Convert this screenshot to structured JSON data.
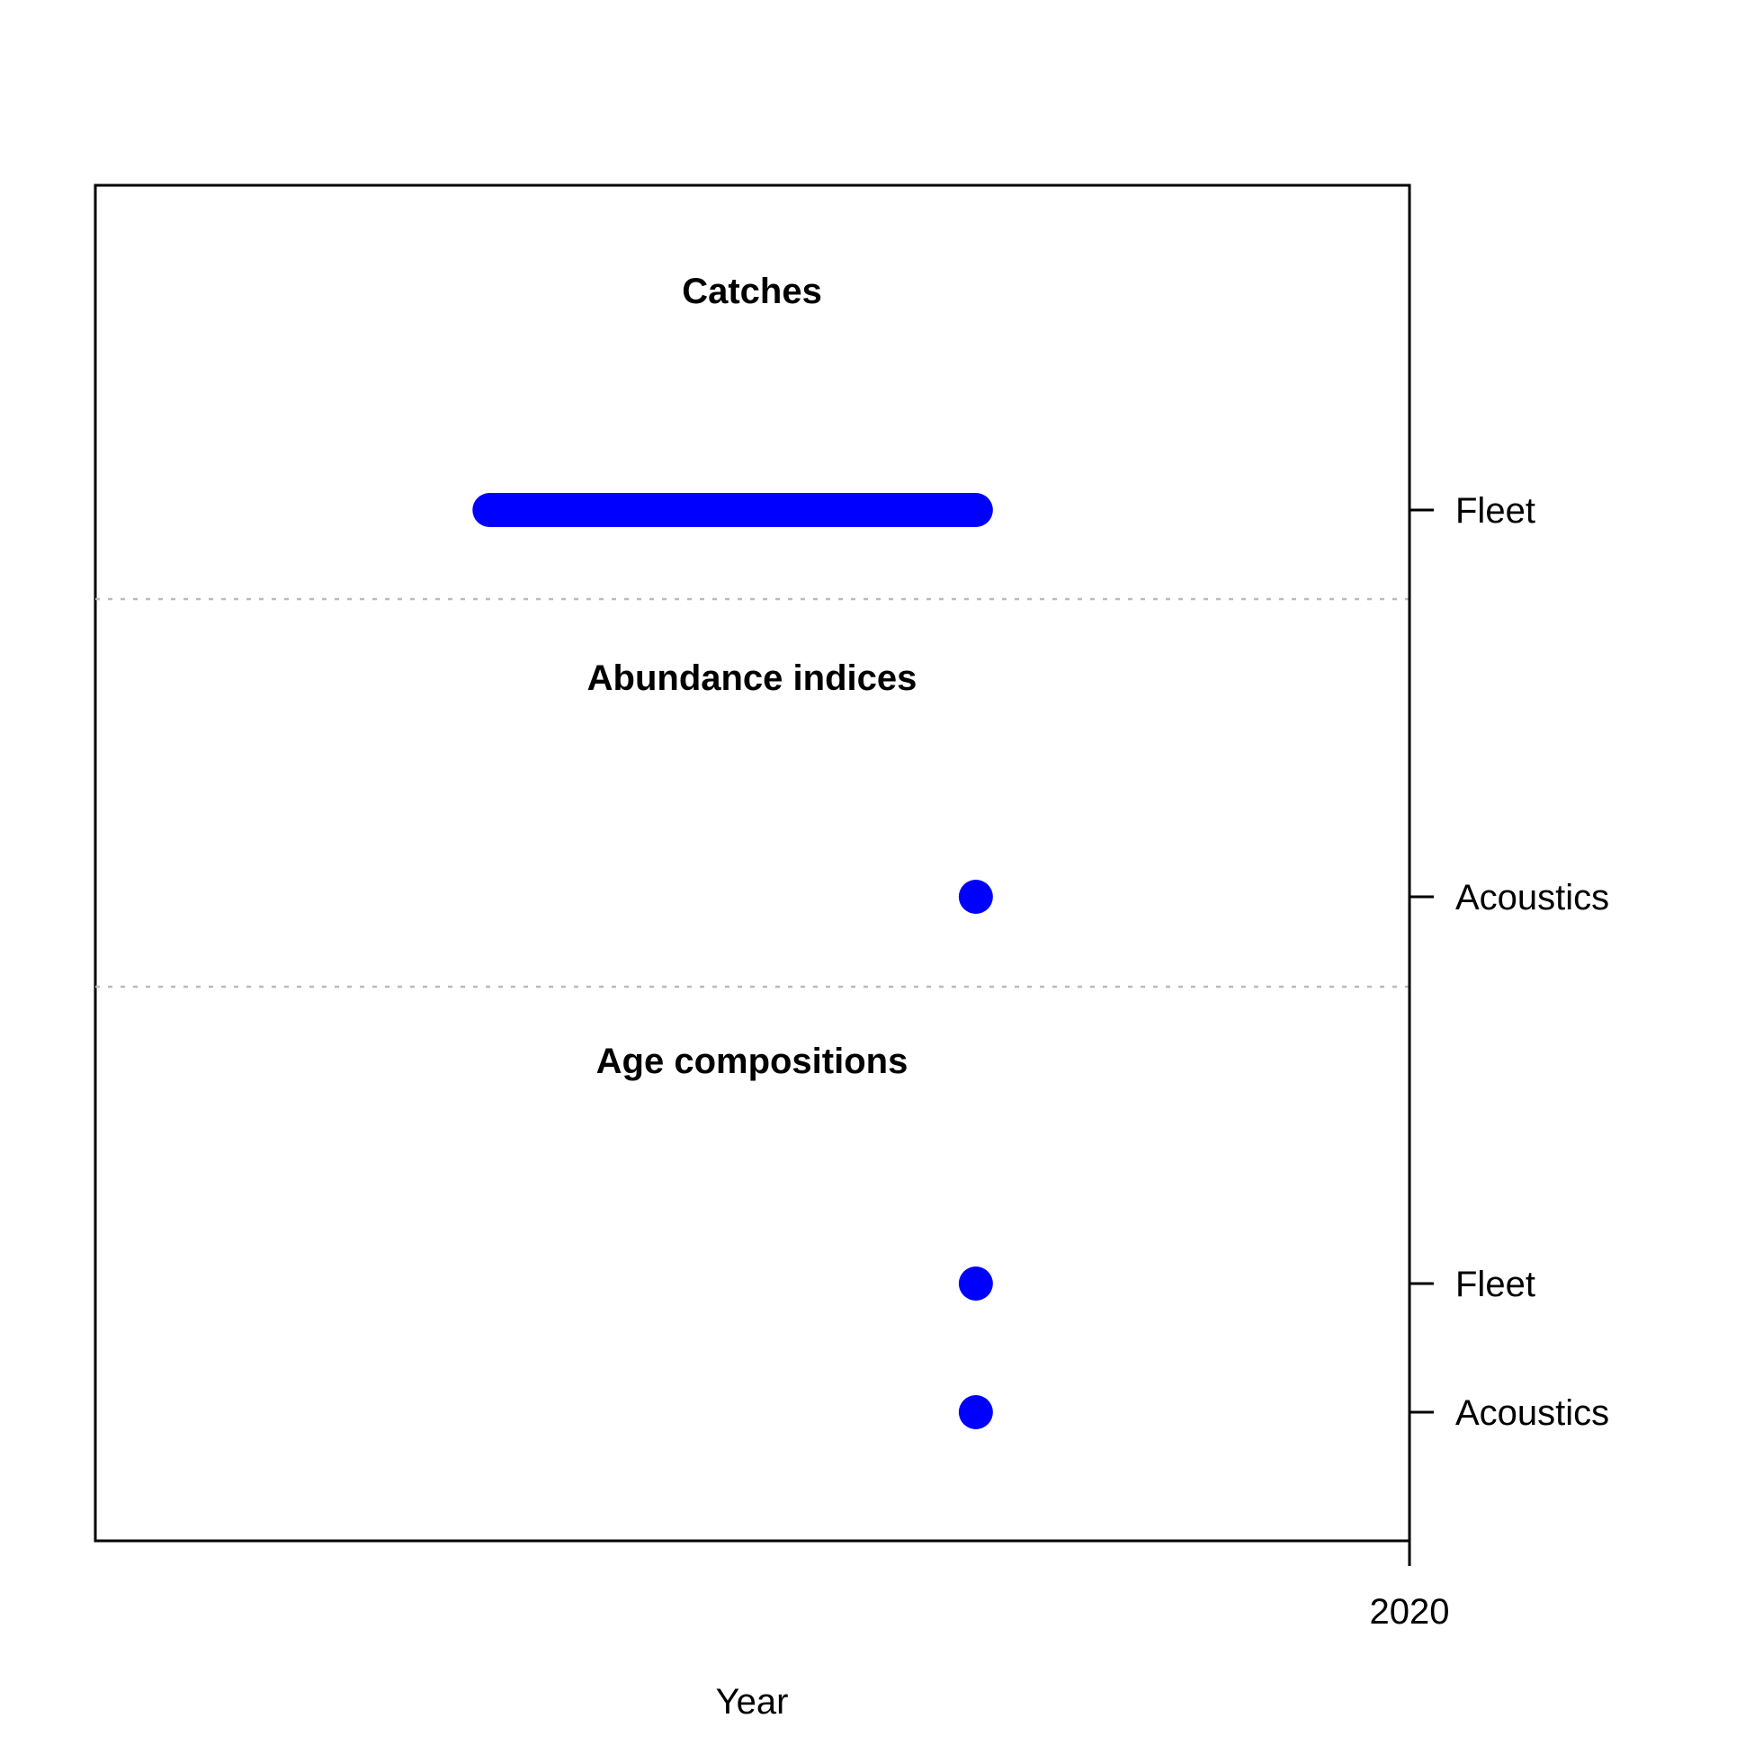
{
  "chart_data": {
    "type": "timeline",
    "xlabel": "Year",
    "x_ticks": [
      2020
    ],
    "xlim": [
      2010,
      2020
    ],
    "colors": {
      "data": "#0000ff",
      "separator": "#bbbbbb",
      "axis": "#000000"
    },
    "sections": [
      {
        "title": "Catches",
        "rows": [
          {
            "label": "Fleet",
            "years": [
              2013,
              2014,
              2015,
              2016,
              2016.7
            ]
          }
        ]
      },
      {
        "title": "Abundance indices",
        "rows": [
          {
            "label": "Acoustics",
            "years": [
              2016.7
            ]
          }
        ]
      },
      {
        "title": "Age compositions",
        "rows": [
          {
            "label": "Fleet",
            "years": [
              2016.7
            ]
          },
          {
            "label": "Acoustics",
            "years": [
              2016.7
            ]
          }
        ]
      }
    ]
  }
}
